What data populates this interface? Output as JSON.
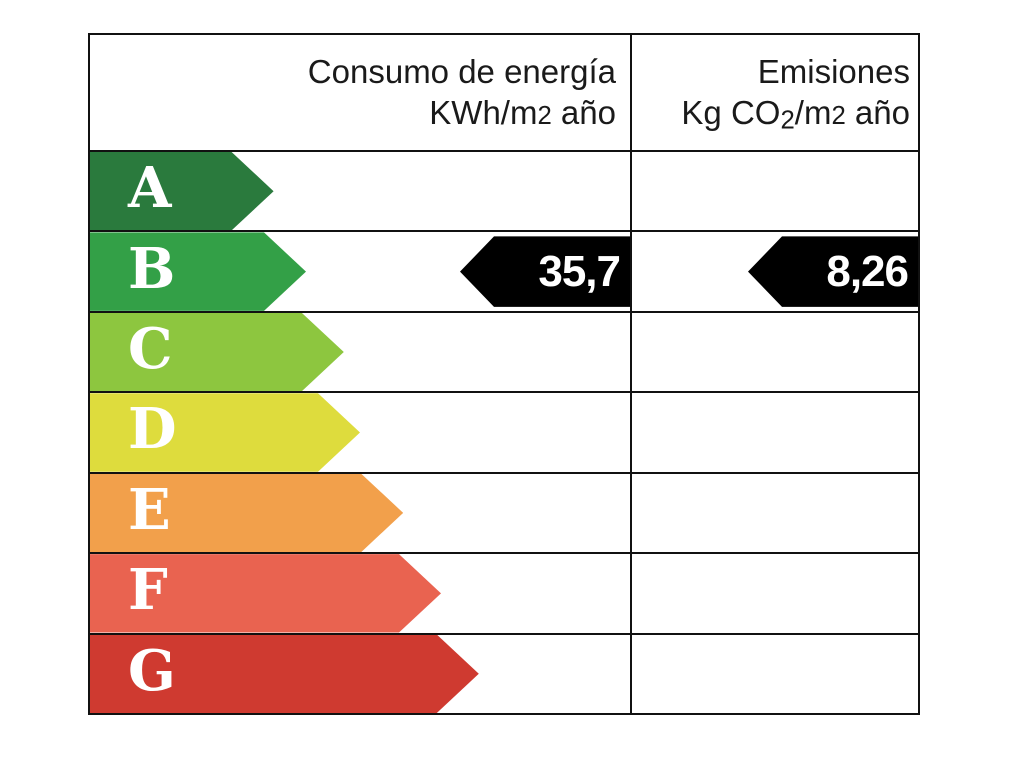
{
  "header": {
    "consumo": {
      "line1": "Consumo de energía",
      "unit_prefix": "KWh/m",
      "unit_exp": "2",
      "unit_suffix": " año"
    },
    "emisiones": {
      "line1": "Emisiones",
      "unit_prefix": "Kg CO",
      "unit_sub": "2",
      "unit_mid": "/m",
      "unit_exp": "2",
      "unit_suffix": " año"
    }
  },
  "chart_data": {
    "type": "bar",
    "description_columns": [
      "Consumo de energía KWh/m2 año",
      "Emisiones Kg CO2/m2 año"
    ],
    "ratings": [
      {
        "letter": "A",
        "color": "#2a7a3d",
        "width_pct": 34
      },
      {
        "letter": "B",
        "color": "#33a047",
        "width_pct": 40
      },
      {
        "letter": "C",
        "color": "#8dc63f",
        "width_pct": 47
      },
      {
        "letter": "D",
        "color": "#dedc3d",
        "width_pct": 50
      },
      {
        "letter": "E",
        "color": "#f2a04b",
        "width_pct": 58
      },
      {
        "letter": "F",
        "color": "#e96350",
        "width_pct": 65
      },
      {
        "letter": "G",
        "color": "#cf3a30",
        "width_pct": 72
      }
    ],
    "current_rating_letter": "B",
    "values": {
      "consumo_kwh_m2_ano": "35,7",
      "emisiones_kg_co2_m2_ano": "8,26"
    },
    "value_arrow_color": "#000000",
    "value_text_color": "#ffffff"
  }
}
